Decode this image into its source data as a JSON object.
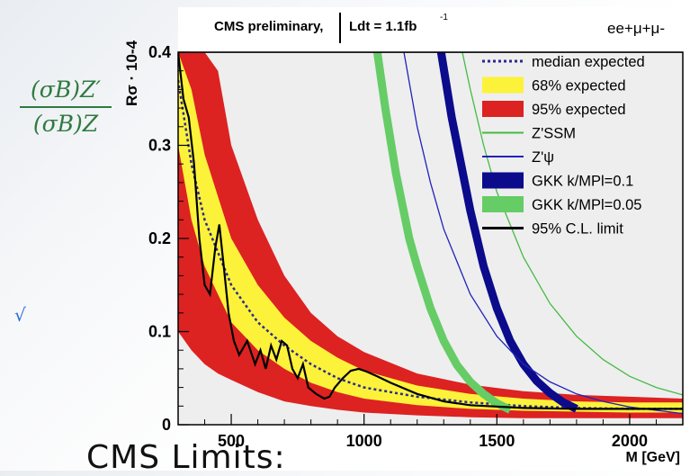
{
  "slide": {
    "formula_numerator": "(σB)Z′",
    "formula_denominator": "(σB)Z",
    "check_mark": "√",
    "footer_text": "CMS Limits:"
  },
  "chart_data": {
    "type": "line",
    "title": "CMS preliminary,",
    "luminosity": "Ldt = 1.1fb",
    "luminosity_exponent": "-1",
    "channel": "ee+μ+μ-",
    "ylabel": "Rσ · 10-4",
    "xlabel": "M [GeV]",
    "xlim": [
      300,
      2200
    ],
    "ylim": [
      0,
      0.4
    ],
    "xticks": [
      500,
      1000,
      1500,
      2000
    ],
    "yticks": [
      0,
      0.1,
      0.2,
      0.3,
      0.4
    ],
    "grid": false,
    "legend_position": "top-right",
    "colors": {
      "band95": "#dd2222",
      "band68": "#fcf23a",
      "median": "#2b2b8e",
      "ssm": "#44bb44",
      "psi": "#2222bb",
      "gkk01": "#0b0b8c",
      "gkk005": "#66cc66",
      "observed": "#000000",
      "plot_bg": "#eeeeee"
    },
    "legend": [
      {
        "label": "median expected",
        "style": "dotted"
      },
      {
        "label": "68% expected",
        "style": "box-yellow"
      },
      {
        "label": "95% expected",
        "style": "box-red"
      },
      {
        "label": "Z'SSM",
        "style": "line-ssm"
      },
      {
        "label": "Z'ψ",
        "style": "line-psi"
      },
      {
        "label": "GKK k/MPl=0.1",
        "style": "box-gkk01"
      },
      {
        "label": "GKK k/MPl=0.05",
        "style": "box-gkk005"
      },
      {
        "label": "95% C.L. limit",
        "style": "line-observed"
      }
    ],
    "series": [
      {
        "name": "median expected",
        "x": [
          300,
          350,
          400,
          500,
          600,
          700,
          800,
          900,
          1000,
          1200,
          1400,
          1600,
          1800,
          2000,
          2200
        ],
        "y": [
          0.37,
          0.28,
          0.22,
          0.15,
          0.11,
          0.085,
          0.065,
          0.05,
          0.04,
          0.03,
          0.024,
          0.02,
          0.018,
          0.017,
          0.017
        ]
      },
      {
        "name": "68% expected",
        "x": [
          300,
          350,
          400,
          500,
          600,
          700,
          800,
          900,
          1000,
          1200,
          1400,
          1600,
          1800,
          2000,
          2200
        ],
        "lower": [
          0.3,
          0.22,
          0.17,
          0.11,
          0.08,
          0.06,
          0.045,
          0.035,
          0.028,
          0.021,
          0.017,
          0.015,
          0.014,
          0.013,
          0.013
        ],
        "upper": [
          0.4,
          0.36,
          0.29,
          0.2,
          0.15,
          0.115,
          0.09,
          0.072,
          0.058,
          0.042,
          0.033,
          0.028,
          0.025,
          0.024,
          0.024
        ]
      },
      {
        "name": "95% expected",
        "x": [
          300,
          350,
          400,
          450,
          500,
          600,
          700,
          800,
          900,
          1000,
          1200,
          1400,
          1600,
          1800,
          2000,
          2200
        ],
        "lower": [
          0.1,
          0.08,
          0.065,
          0.055,
          0.048,
          0.035,
          0.025,
          0.02,
          0.016,
          0.013,
          0.01,
          0.008,
          0.007,
          0.007,
          0.007,
          0.007
        ],
        "upper": [
          0.4,
          0.4,
          0.4,
          0.38,
          0.3,
          0.22,
          0.16,
          0.12,
          0.095,
          0.078,
          0.055,
          0.043,
          0.036,
          0.032,
          0.03,
          0.028
        ]
      },
      {
        "name": "Z'SSM",
        "x": [
          1370,
          1400,
          1450,
          1500,
          1600,
          1700,
          1800,
          1900,
          2000,
          2100,
          2200
        ],
        "y": [
          0.4,
          0.36,
          0.3,
          0.25,
          0.18,
          0.13,
          0.095,
          0.07,
          0.052,
          0.04,
          0.032
        ]
      },
      {
        "name": "Z'ψ",
        "x": [
          1150,
          1200,
          1250,
          1300,
          1400,
          1500,
          1600,
          1700,
          1800,
          1900,
          2000,
          2200
        ],
        "y": [
          0.4,
          0.32,
          0.26,
          0.21,
          0.14,
          0.095,
          0.065,
          0.046,
          0.033,
          0.025,
          0.019,
          0.012
        ]
      },
      {
        "name": "GKK k/MPl=0.1",
        "x": [
          1290,
          1330,
          1400,
          1450,
          1500,
          1550,
          1600,
          1650,
          1700,
          1750,
          1800
        ],
        "y": [
          0.4,
          0.33,
          0.23,
          0.17,
          0.125,
          0.09,
          0.065,
          0.047,
          0.034,
          0.024,
          0.017
        ]
      },
      {
        "name": "GKK k/MPl=0.05",
        "x": [
          1050,
          1080,
          1120,
          1170,
          1200,
          1250,
          1300,
          1350,
          1400,
          1450,
          1500,
          1550
        ],
        "y": [
          0.4,
          0.34,
          0.27,
          0.2,
          0.17,
          0.125,
          0.09,
          0.064,
          0.046,
          0.033,
          0.023,
          0.016
        ]
      },
      {
        "name": "95% C.L. limit",
        "x": [
          300,
          320,
          340,
          360,
          380,
          400,
          420,
          440,
          455,
          470,
          490,
          510,
          530,
          560,
          590,
          610,
          630,
          650,
          670,
          690,
          710,
          730,
          750,
          770,
          790,
          820,
          850,
          870,
          890,
          920,
          950,
          980,
          1010,
          1050,
          1100,
          1200,
          1300,
          1400,
          1600,
          1800,
          2000,
          2200
        ],
        "y": [
          0.4,
          0.35,
          0.33,
          0.28,
          0.2,
          0.15,
          0.14,
          0.19,
          0.215,
          0.175,
          0.12,
          0.09,
          0.075,
          0.09,
          0.065,
          0.08,
          0.06,
          0.085,
          0.07,
          0.09,
          0.085,
          0.06,
          0.05,
          0.065,
          0.04,
          0.033,
          0.028,
          0.03,
          0.04,
          0.05,
          0.058,
          0.06,
          0.057,
          0.052,
          0.045,
          0.033,
          0.025,
          0.021,
          0.018,
          0.017,
          0.017,
          0.017
        ]
      }
    ]
  }
}
